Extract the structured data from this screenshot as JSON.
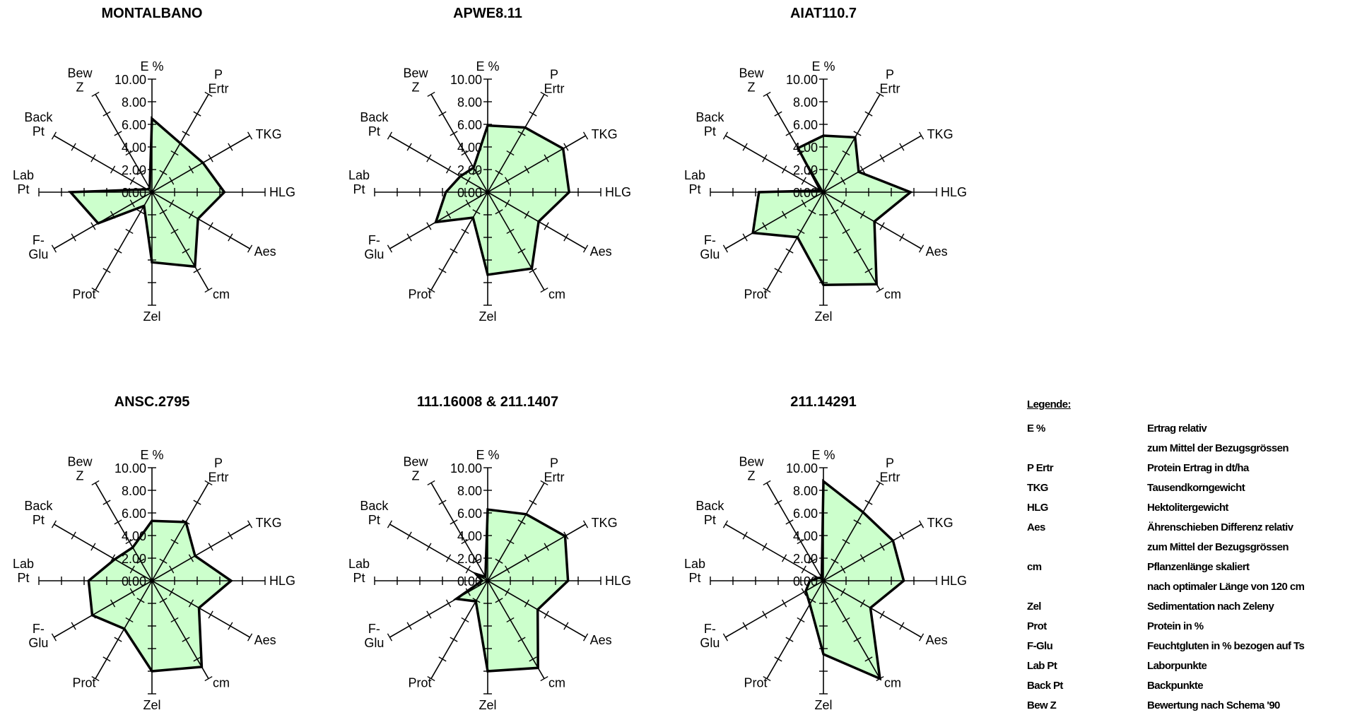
{
  "chart_data": [
    {
      "type": "radar",
      "title": "MONTALBANO",
      "axes": [
        "E %",
        "P Ertr",
        "TKG",
        "HLG",
        "Aes",
        "cm",
        "Zel",
        "Prot",
        "F-Glu",
        "Lab Pt",
        "Back Pt",
        "Bew Z"
      ],
      "values": [
        6.5,
        5.0,
        5.2,
        6.4,
        4.7,
        7.6,
        6.2,
        1.4,
        5.5,
        7.2,
        0.5,
        0.4
      ],
      "ylim": [
        0,
        10
      ],
      "tick_labels": [
        "0.00",
        "2.00",
        "4.00",
        "6.00",
        "8.00",
        "10.00"
      ]
    },
    {
      "type": "radar",
      "title": "APWE8.11",
      "axes": [
        "E %",
        "P Ertr",
        "TKG",
        "HLG",
        "Aes",
        "cm",
        "Zel",
        "Prot",
        "F-Glu",
        "Lab Pt",
        "Back Pt",
        "Bew Z"
      ],
      "values": [
        5.9,
        6.6,
        7.7,
        7.2,
        5.2,
        7.8,
        7.3,
        2.6,
        5.3,
        3.7,
        2.8,
        2.5
      ],
      "ylim": [
        0,
        10
      ],
      "tick_labels": [
        "0.00",
        "2.00",
        "4.00",
        "6.00",
        "8.00",
        "10.00"
      ]
    },
    {
      "type": "radar",
      "title": "AIAT110.7",
      "axes": [
        "E %",
        "P Ertr",
        "TKG",
        "HLG",
        "Aes",
        "cm",
        "Zel",
        "Prot",
        "F-Glu",
        "Lab Pt",
        "Back Pt",
        "Bew Z"
      ],
      "values": [
        5.0,
        5.6,
        3.6,
        7.7,
        5.2,
        9.4,
        8.2,
        4.6,
        7.2,
        5.7,
        0.3,
        4.5
      ],
      "ylim": [
        0,
        10
      ],
      "tick_labels": [
        "0.00",
        "2.00",
        "4.00",
        "6.00",
        "8.00",
        "10.00"
      ]
    },
    {
      "type": "radar",
      "title": "ANSC.2795",
      "axes": [
        "E %",
        "P Ertr",
        "TKG",
        "HLG",
        "Aes",
        "cm",
        "Zel",
        "Prot",
        "F-Glu",
        "Lab Pt",
        "Back Pt",
        "Bew Z"
      ],
      "values": [
        5.3,
        6.0,
        4.4,
        7.0,
        4.8,
        8.8,
        8.0,
        4.9,
        6.1,
        5.6,
        3.8,
        3.4
      ],
      "ylim": [
        0,
        10
      ],
      "tick_labels": [
        "0.00",
        "2.00",
        "4.00",
        "6.00",
        "8.00",
        "10.00"
      ]
    },
    {
      "type": "radar",
      "title": "111.16008  & 211.1407",
      "axes": [
        "E %",
        "P Ertr",
        "TKG",
        "HLG",
        "Aes",
        "cm",
        "Zel",
        "Prot",
        "F-Glu",
        "Lab Pt",
        "Back Pt",
        "Bew Z"
      ],
      "values": [
        6.3,
        6.8,
        7.9,
        7.1,
        5.1,
        8.9,
        8.0,
        2.1,
        3.2,
        0.5,
        1.2,
        0.4
      ],
      "ylim": [
        0,
        10
      ],
      "tick_labels": [
        "0.00",
        "2.00",
        "4.00",
        "6.00",
        "8.00",
        "10.00"
      ]
    },
    {
      "type": "radar",
      "title": "211.14291",
      "axes": [
        "E %",
        "P Ertr",
        "TKG",
        "HLG",
        "Aes",
        "cm",
        "Zel",
        "Prot",
        "F-Glu",
        "Lab Pt",
        "Back Pt",
        "Bew Z"
      ],
      "values": [
        8.8,
        7.0,
        7.1,
        7.1,
        4.8,
        10.0,
        6.5,
        2.4,
        1.8,
        1.2,
        0.5,
        0.3
      ],
      "ylim": [
        0,
        10
      ],
      "tick_labels": [
        "0.00",
        "2.00",
        "4.00",
        "6.00",
        "8.00",
        "10.00"
      ]
    }
  ],
  "legend": {
    "title": "Legende:",
    "rows": [
      {
        "key": "E %",
        "desc": "Ertrag relativ"
      },
      {
        "key": "",
        "desc": "zum Mittel der Bezugsgrössen"
      },
      {
        "key": "P Ertr",
        "desc": "Protein Ertrag in dt/ha"
      },
      {
        "key": "TKG",
        "desc": "Tausendkorngewicht"
      },
      {
        "key": "HLG",
        "desc": "Hektolitergewicht"
      },
      {
        "key": "Aes",
        "desc": "Ährenschieben Differenz relativ"
      },
      {
        "key": "",
        "desc": "zum Mittel der Bezugsgrössen"
      },
      {
        "key": "cm",
        "desc": "Pflanzenlänge skaliert"
      },
      {
        "key": "",
        "desc": "nach optimaler Länge von 120 cm"
      },
      {
        "key": "Zel",
        "desc": "Sedimentation nach Zeleny"
      },
      {
        "key": "Prot",
        "desc": "Protein in %"
      },
      {
        "key": "F-Glu",
        "desc": "Feuchtgluten in % bezogen auf Ts"
      },
      {
        "key": "Lab Pt",
        "desc": "Laborpunkte"
      },
      {
        "key": "Back Pt",
        "desc": "Backpunkte"
      },
      {
        "key": "Bew Z",
        "desc": "Bewertung nach Schema '90"
      }
    ]
  },
  "colors": {
    "fill": "#ccffcc",
    "stroke": "#000000"
  }
}
